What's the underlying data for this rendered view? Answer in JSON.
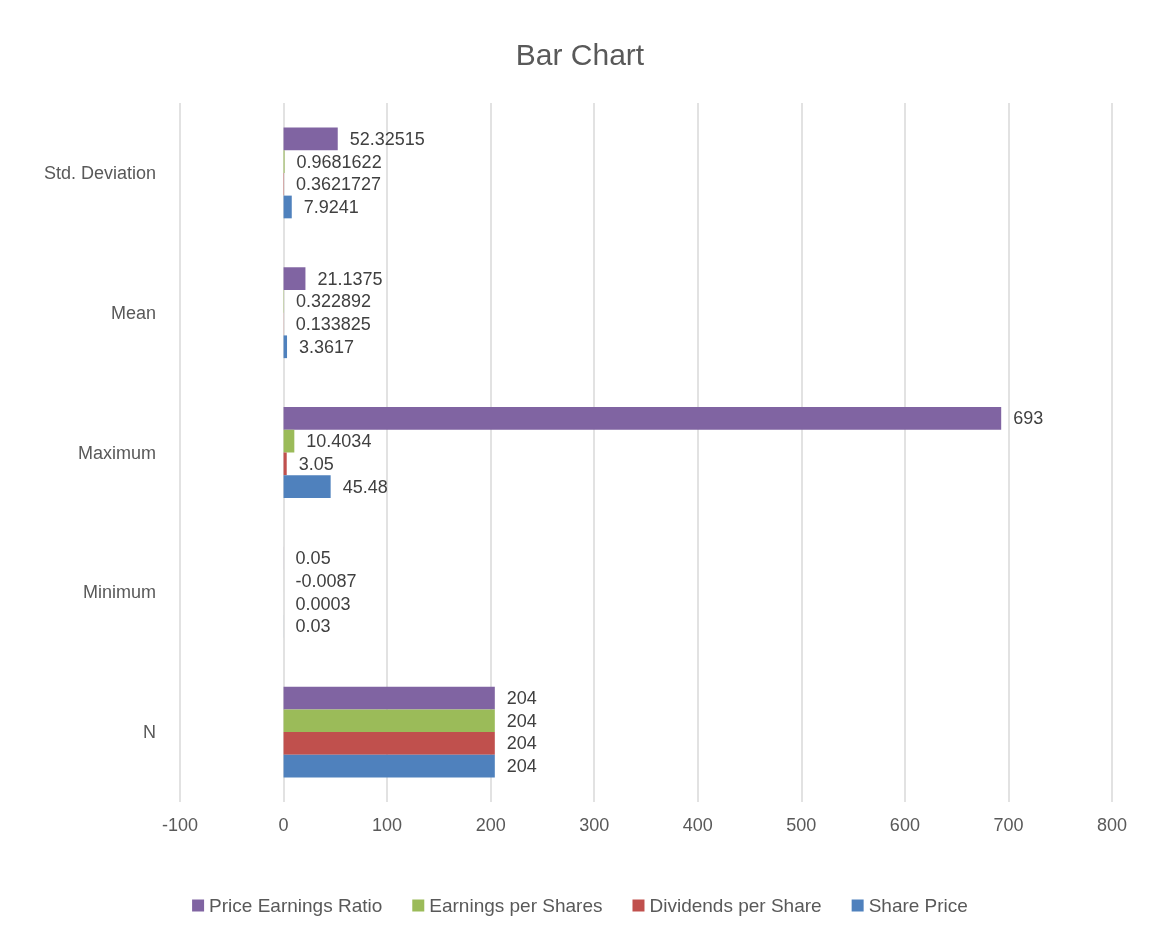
{
  "chart_data": {
    "type": "bar",
    "title": "Bar Chart",
    "orientation": "horizontal",
    "categories": [
      "Std. Deviation",
      "Mean",
      "Maximum",
      "Minimum",
      "N"
    ],
    "series": [
      {
        "name": "Price Earnings Ratio",
        "color": "#8064a2",
        "values": [
          52.32515,
          21.1375,
          693,
          0.05,
          204
        ]
      },
      {
        "name": "Earnings per Shares",
        "color": "#9bbb59",
        "values": [
          0.9681622,
          0.322892,
          10.4034,
          -0.0087,
          204
        ]
      },
      {
        "name": "Dividends per Share",
        "color": "#c0504d",
        "values": [
          0.3621727,
          0.133825,
          3.05,
          0.0003,
          204
        ]
      },
      {
        "name": "Share Price",
        "color": "#4f81bd",
        "values": [
          7.9241,
          3.3617,
          45.48,
          0.03,
          204
        ]
      }
    ],
    "xlim": [
      -100,
      800
    ],
    "xticks": [
      -100,
      0,
      100,
      200,
      300,
      400,
      500,
      600,
      700,
      800
    ],
    "grid": "x",
    "legend": "bottom",
    "data_labels": true
  }
}
